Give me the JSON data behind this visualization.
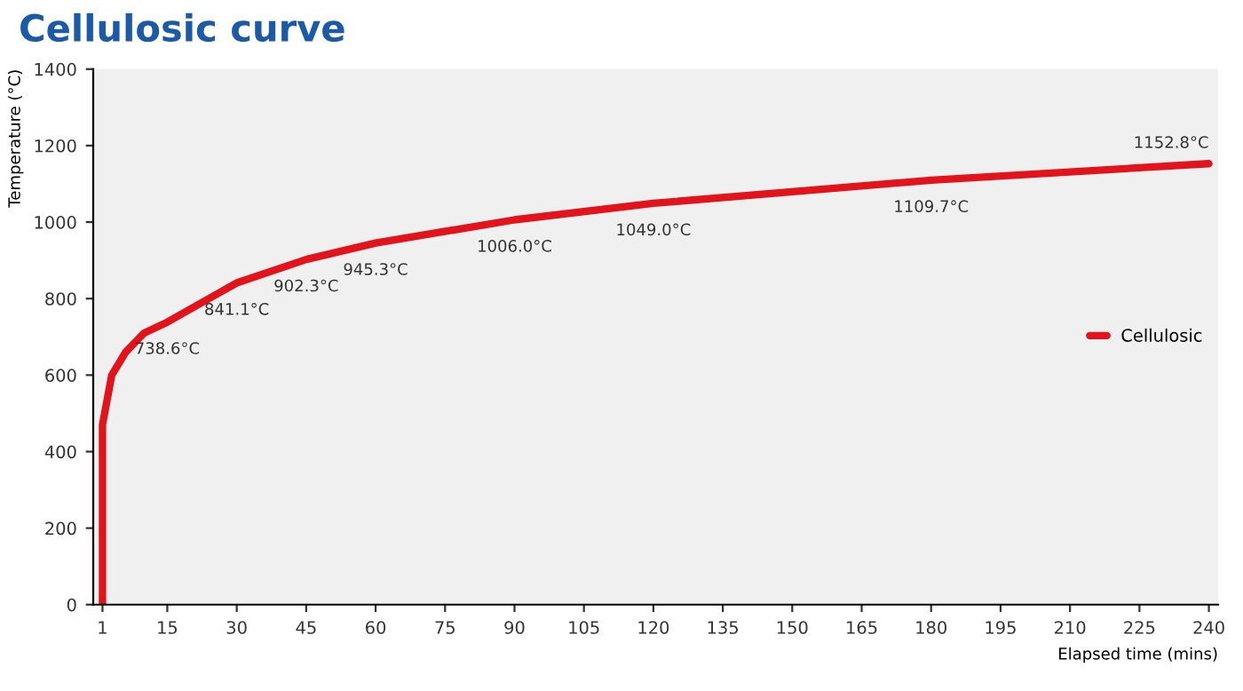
{
  "chart_data": {
    "type": "line",
    "title": "Cellulosic curve",
    "xlabel": "Elapsed time (mins)",
    "ylabel": "Temperature (°C)",
    "series": [
      {
        "name": "Cellulosic",
        "color": "#e3131b",
        "x": [
          1,
          1,
          3,
          6,
          10,
          15,
          30,
          45,
          60,
          90,
          120,
          180,
          240
        ],
        "values": [
          0,
          470,
          600,
          660,
          710,
          738.6,
          841.1,
          902.3,
          945.3,
          1006.0,
          1049.0,
          1109.7,
          1152.8
        ],
        "value_labels": [
          null,
          null,
          null,
          null,
          null,
          "738.6°C",
          "841.1°C",
          "902.3°C",
          "945.3°C",
          "1006.0°C",
          "1049.0°C",
          "1109.7°C",
          "1152.8°C"
        ]
      }
    ],
    "xlim": [
      -1,
      242
    ],
    "ylim": [
      0,
      1400
    ],
    "xticks": [
      1,
      15,
      30,
      45,
      60,
      75,
      90,
      105,
      120,
      135,
      150,
      165,
      180,
      195,
      210,
      225,
      240
    ],
    "yticks": [
      0,
      200,
      400,
      600,
      800,
      1000,
      1200,
      1400
    ],
    "grid": false,
    "legend": "right",
    "marker": "none",
    "line_style": "solid"
  }
}
